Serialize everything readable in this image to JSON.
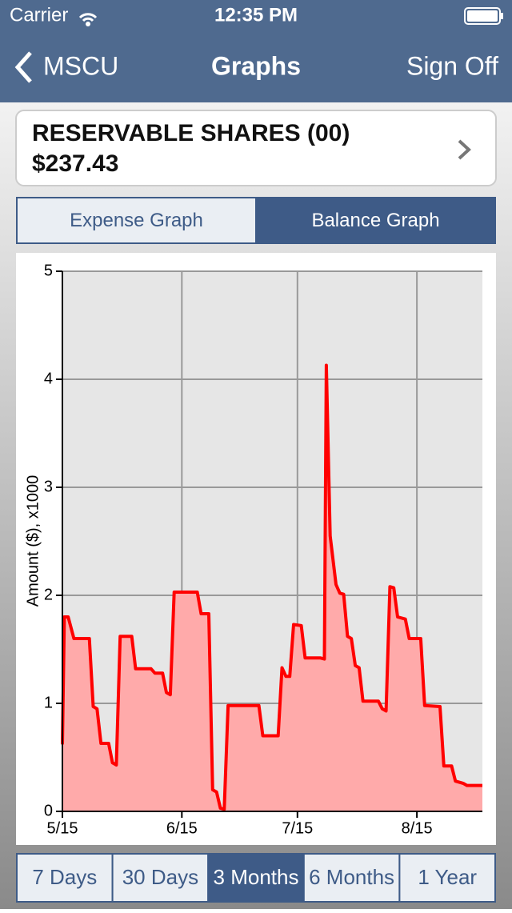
{
  "status_bar": {
    "carrier": "Carrier",
    "time": "12:35 PM"
  },
  "nav": {
    "back": "MSCU",
    "title": "Graphs",
    "action": "Sign Off"
  },
  "account": {
    "name": "RESERVABLE SHARES (00)",
    "balance": "$237.43"
  },
  "graph_tabs": [
    "Expense Graph",
    "Balance Graph"
  ],
  "selected_graph_tab": 1,
  "range_tabs": [
    "7 Days",
    "30 Days",
    "3 Months",
    "6 Months",
    "1 Year"
  ],
  "selected_range_tab": 2,
  "chart_data": {
    "type": "line",
    "y_label": "Amount ($), x1000",
    "x": [
      0,
      0.5,
      1.5,
      3,
      7,
      8,
      9,
      10,
      12,
      13,
      14,
      15,
      18,
      19,
      23,
      24,
      26,
      27,
      28,
      29,
      35,
      36,
      38,
      39,
      40,
      41,
      42,
      43,
      51,
      52,
      56,
      57,
      58,
      59,
      60,
      62,
      63,
      67,
      68,
      68.5,
      69.5,
      71,
      72,
      73,
      74,
      75,
      76,
      77,
      78,
      82,
      83,
      84,
      85,
      86,
      87,
      89,
      90,
      93,
      94,
      98,
      99,
      101,
      102,
      104,
      105,
      109
    ],
    "values": [
      0.62,
      1.8,
      1.8,
      1.6,
      1.6,
      0.97,
      0.95,
      0.63,
      0.63,
      0.45,
      0.43,
      1.62,
      1.62,
      1.32,
      1.32,
      1.28,
      1.28,
      1.1,
      1.08,
      2.03,
      2.03,
      1.83,
      1.83,
      0.2,
      0.18,
      0.03,
      0.02,
      0.98,
      0.98,
      0.7,
      0.7,
      1.33,
      1.25,
      1.25,
      1.73,
      1.72,
      1.42,
      1.42,
      1.41,
      4.13,
      2.55,
      2.1,
      2.02,
      2.01,
      1.62,
      1.6,
      1.35,
      1.33,
      1.02,
      1.02,
      0.95,
      0.93,
      2.08,
      2.07,
      1.8,
      1.78,
      1.6,
      1.6,
      0.98,
      0.97,
      0.42,
      0.42,
      0.28,
      0.26,
      0.24,
      0.24
    ],
    "color": "#ff0000",
    "area": true,
    "area_color": "#ffaaaa",
    "xlim": [
      0,
      109
    ],
    "xticks": [
      {
        "value": 0,
        "label": "5/15"
      },
      {
        "value": 31,
        "label": "6/15"
      },
      {
        "value": 61,
        "label": "7/15"
      },
      {
        "value": 92,
        "label": "8/15"
      }
    ],
    "ylim": [
      0,
      5
    ],
    "yticks": [
      0,
      1,
      2,
      3,
      4,
      5
    ],
    "grid": true
  }
}
